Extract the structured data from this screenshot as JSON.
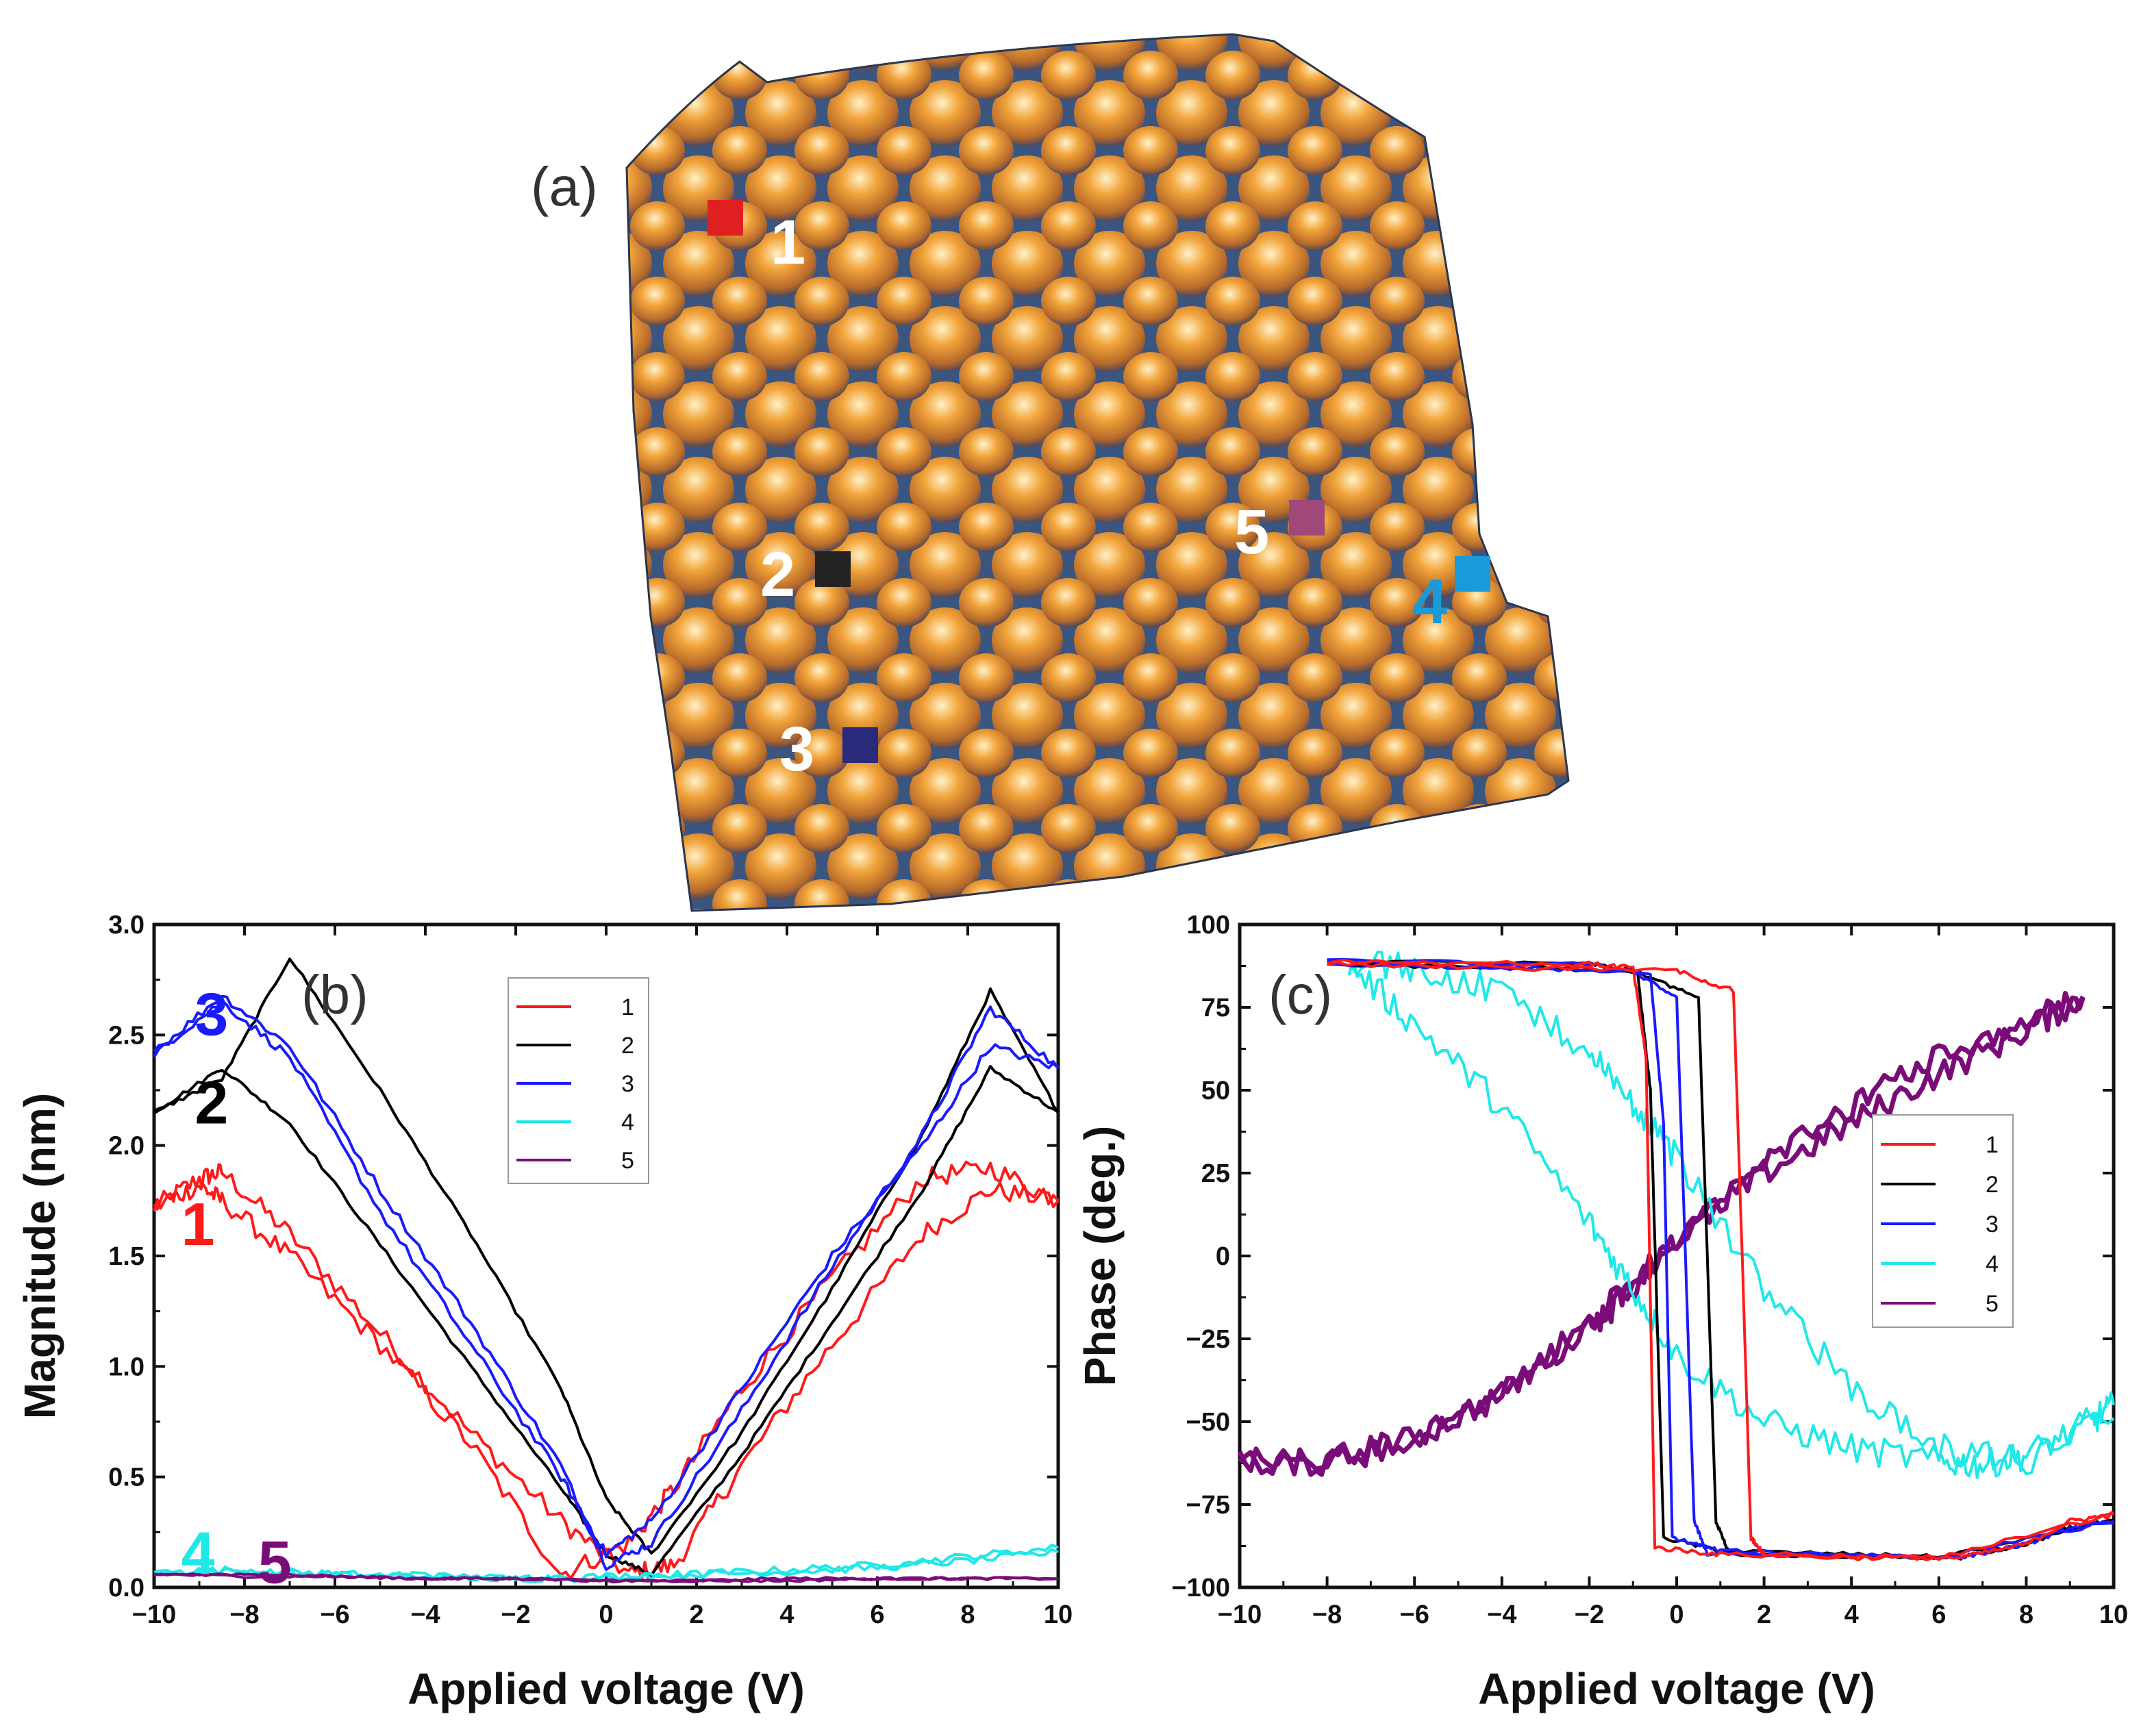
{
  "colors": {
    "s1": "#ff1a1a",
    "s2": "#000000",
    "s3": "#1a1aff",
    "s4": "#1fe8e8",
    "s5": "#7a0c7a"
  },
  "panel_a": {
    "label": "(a)",
    "markers": [
      {
        "label": "1",
        "color": "#e02020",
        "label_color": "#ffffff"
      },
      {
        "label": "2",
        "color": "#222222",
        "label_color": "#ffffff"
      },
      {
        "label": "3",
        "color": "#2a2a7a",
        "label_color": "#ffffff"
      },
      {
        "label": "4",
        "color": "#1a9ad8",
        "label_color": "#1a9ad8"
      },
      {
        "label": "5",
        "color": "#a0487a",
        "label_color": "#ffffff"
      }
    ]
  },
  "chart_data": [
    {
      "type": "line",
      "panel_label": "(b)",
      "xlabel": "Applied voltage (V)",
      "ylabel": "Magnitude (nm)",
      "xlim": [
        -10,
        10
      ],
      "ylim": [
        0,
        3
      ],
      "xticks": [
        "−10",
        "−8",
        "−6",
        "−4",
        "−2",
        "0",
        "2",
        "4",
        "6",
        "8",
        "10"
      ],
      "yticks": [
        "0.0",
        "0.5",
        "1.0",
        "1.5",
        "2.0",
        "2.5",
        "3.0"
      ],
      "legend": [
        "1",
        "2",
        "3",
        "4",
        "5"
      ],
      "curve_labels": [
        "1",
        "2",
        "3",
        "4",
        "5"
      ],
      "series": [
        {
          "name": "1",
          "x": [
            -10,
            -9,
            -8.5,
            -7,
            -5,
            -3,
            -1,
            0.5,
            1.5,
            3,
            5,
            7,
            8.5,
            10
          ],
          "y_up": [
            1.72,
            1.85,
            1.88,
            1.6,
            1.15,
            0.7,
            0.3,
            0.06,
            0.1,
            0.55,
            1.1,
            1.6,
            1.8,
            1.75
          ],
          "y_down": [
            1.72,
            1.82,
            1.75,
            1.5,
            1.1,
            0.65,
            0.06,
            0.2,
            0.45,
            0.9,
            1.4,
            1.85,
            1.9,
            1.75
          ]
        },
        {
          "name": "2",
          "x": [
            -10,
            -8.5,
            -7,
            -5,
            -3,
            -1,
            0,
            1,
            3,
            5,
            7,
            8.5,
            10
          ],
          "y_up": [
            2.15,
            2.35,
            2.1,
            1.55,
            1.0,
            0.45,
            0.15,
            0.06,
            0.6,
            1.2,
            1.8,
            2.35,
            2.15
          ],
          "y_down": [
            2.15,
            2.3,
            2.85,
            2.25,
            1.6,
            0.9,
            0.4,
            0.15,
            0.7,
            1.35,
            2.05,
            2.7,
            2.15
          ]
        },
        {
          "name": "3",
          "x": [
            -10,
            -8.5,
            -7,
            -5,
            -3,
            -1,
            0,
            1,
            3,
            5,
            7,
            8.5,
            10
          ],
          "y_up": [
            2.42,
            2.68,
            2.45,
            1.8,
            1.2,
            0.55,
            0.1,
            0.2,
            0.8,
            1.45,
            2.05,
            2.62,
            2.35
          ],
          "y_down": [
            2.42,
            2.65,
            2.4,
            1.7,
            1.1,
            0.5,
            0.15,
            0.3,
            0.9,
            1.5,
            2.0,
            2.45,
            2.35
          ]
        },
        {
          "name": "4",
          "x": [
            -10,
            -8,
            -6,
            -4,
            -2,
            0,
            2,
            4,
            6,
            8,
            10
          ],
          "y_up": [
            0.07,
            0.08,
            0.06,
            0.05,
            0.04,
            0.04,
            0.06,
            0.08,
            0.1,
            0.14,
            0.18
          ],
          "y_down": [
            0.07,
            0.07,
            0.06,
            0.05,
            0.04,
            0.05,
            0.06,
            0.07,
            0.09,
            0.12,
            0.16
          ]
        },
        {
          "name": "5",
          "x": [
            -10,
            -8,
            -6,
            -4,
            -2,
            0,
            2,
            4,
            6,
            8,
            10
          ],
          "y_up": [
            0.06,
            0.06,
            0.05,
            0.04,
            0.04,
            0.03,
            0.03,
            0.04,
            0.04,
            0.04,
            0.04
          ],
          "y_down": [
            0.06,
            0.05,
            0.05,
            0.04,
            0.04,
            0.03,
            0.03,
            0.03,
            0.04,
            0.04,
            0.04
          ]
        }
      ]
    },
    {
      "type": "line",
      "panel_label": "(c)",
      "xlabel": "Applied voltage (V)",
      "ylabel": "Phase (deg.)",
      "xlim": [
        -10,
        10
      ],
      "ylim": [
        -100,
        100
      ],
      "xticks": [
        "−10",
        "−8",
        "−6",
        "−4",
        "−2",
        "0",
        "2",
        "4",
        "6",
        "8",
        "10"
      ],
      "yticks": [
        "−100",
        "−75",
        "−50",
        "−25",
        "0",
        "25",
        "50",
        "75",
        "100"
      ],
      "legend": [
        "1",
        "2",
        "3",
        "4",
        "5"
      ],
      "series": [
        {
          "name": "1",
          "x": [
            -8,
            -2,
            -1,
            -0.7,
            -0.5,
            1,
            4,
            6.5,
            8,
            9,
            10
          ],
          "y_forward_from_neg": [
            89,
            88,
            87,
            60,
            -88,
            -90,
            -91,
            -91,
            -87,
            -80,
            -78
          ],
          "x2": [
            10,
            6,
            2,
            1.7,
            1.5,
            1.3,
            0,
            -4,
            -8
          ],
          "y_reverse_from_pos": [
            -78,
            -91,
            -90,
            -85,
            0,
            80,
            86,
            87,
            88
          ]
        },
        {
          "name": "2",
          "x": [
            -8,
            -2,
            -0.9,
            -0.6,
            -0.3,
            1,
            4,
            6.5,
            8,
            9,
            10
          ],
          "y_forward_from_neg": [
            89,
            88,
            86,
            50,
            -85,
            -89,
            -90,
            -91,
            -87,
            -82,
            -80
          ],
          "x2": [
            10,
            6,
            1.2,
            0.9,
            0.7,
            0.5,
            -1,
            -4,
            -8
          ],
          "y_reverse_from_pos": [
            -80,
            -91,
            -90,
            -80,
            0,
            78,
            86,
            87,
            88
          ]
        },
        {
          "name": "3",
          "x": [
            -8,
            -2,
            -0.6,
            -0.3,
            -0.1,
            1,
            4,
            6.5,
            8,
            9,
            10
          ],
          "y_forward_from_neg": [
            89,
            88,
            85,
            40,
            -85,
            -89,
            -90,
            -91,
            -87,
            -82,
            -80
          ],
          "x2": [
            10,
            6,
            0.7,
            0.4,
            0.2,
            0,
            -1,
            -4,
            -8
          ],
          "y_reverse_from_pos": [
            -80,
            -91,
            -90,
            -80,
            0,
            78,
            86,
            87,
            88
          ]
        },
        {
          "name": "4",
          "x": [
            -7.5,
            -6,
            -4,
            -2,
            -1,
            0,
            2,
            4,
            6,
            7,
            8,
            9.5,
            10
          ],
          "y_forward_from_neg": [
            88,
            70,
            45,
            10,
            -10,
            -30,
            -50,
            -58,
            -62,
            -63,
            -60,
            -50,
            -45
          ],
          "x2": [
            10,
            8,
            6,
            4,
            2,
            0,
            -1,
            -2,
            -4,
            -6,
            -7.5
          ],
          "y_reverse_from_pos": [
            -45,
            -62,
            -58,
            -40,
            -10,
            30,
            45,
            62,
            80,
            87,
            88
          ]
        },
        {
          "name": "5",
          "x": [
            -10,
            -8,
            -6,
            -4,
            -2,
            0,
            2,
            4,
            6,
            8,
            9.3
          ],
          "y_forward_from_neg": [
            -62,
            -63,
            -55,
            -42,
            -20,
            5,
            25,
            40,
            55,
            68,
            78
          ],
          "x2": [
            9.3,
            8,
            6,
            4,
            2,
            0,
            -1,
            -2,
            -4,
            -6,
            -8,
            -10
          ],
          "y_reverse_from_pos": [
            78,
            72,
            60,
            45,
            28,
            5,
            -10,
            -22,
            -40,
            -55,
            -62,
            -62
          ]
        }
      ]
    }
  ]
}
